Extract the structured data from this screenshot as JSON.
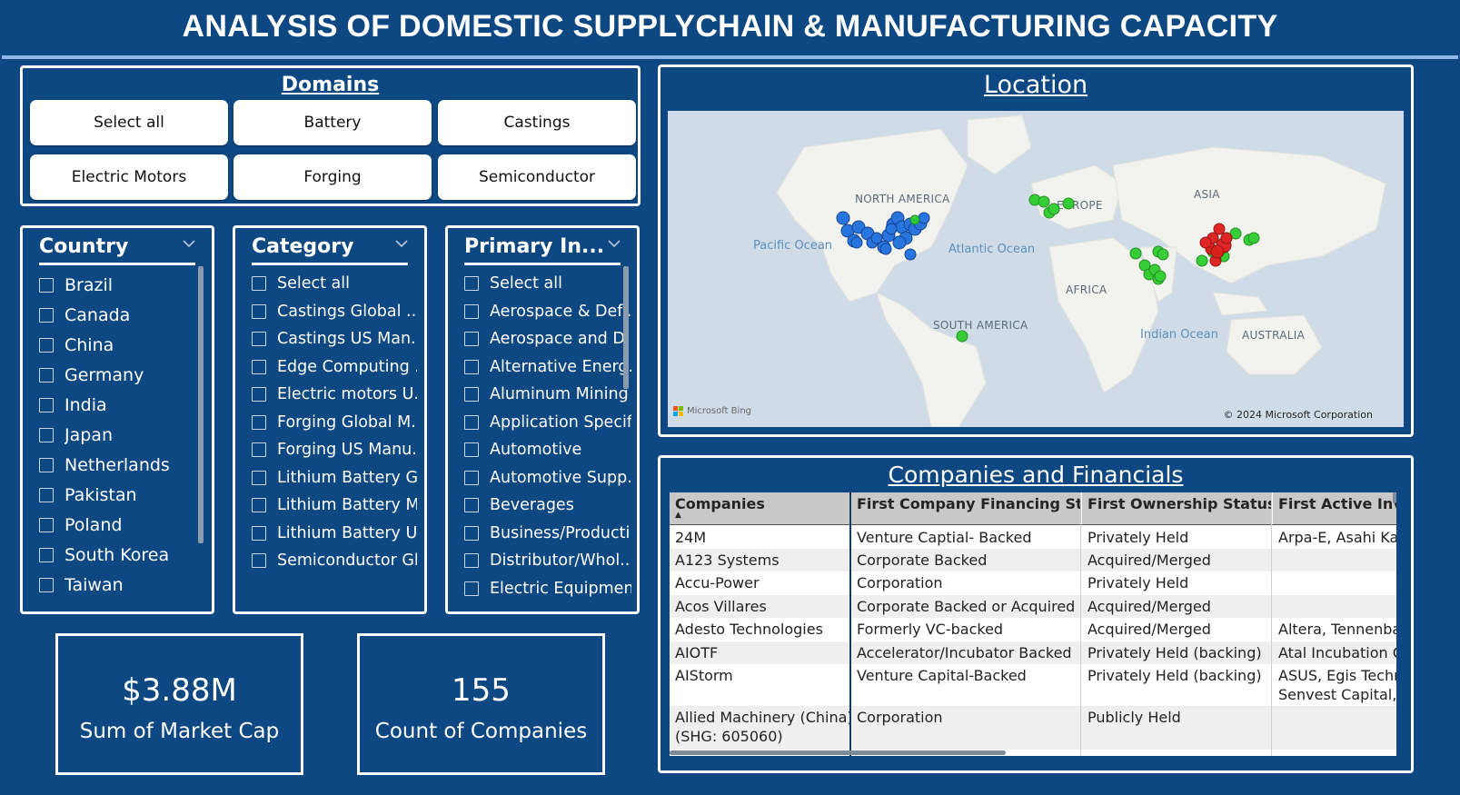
{
  "header": {
    "title": "ANALYSIS OF DOMESTIC SUPPLYCHAIN & MANUFACTURING CAPACITY"
  },
  "domains": {
    "heading": "Domains",
    "buttons": [
      "Select all",
      "Battery",
      "Castings",
      "Electric Motors",
      "Forging",
      "Semiconductor"
    ]
  },
  "country_slicer": {
    "title": "Country",
    "items": [
      "Brazil",
      "Canada",
      "China",
      "Germany",
      "India",
      "Japan",
      "Netherlands",
      "Pakistan",
      "Poland",
      "South Korea",
      "Taiwan"
    ]
  },
  "category_slicer": {
    "title": "Category",
    "items": [
      "Select all",
      "Castings Global ...",
      "Castings US Man...",
      "Edge Computing ...",
      "Electric motors U...",
      "Forging Global M...",
      "Forging US Manu...",
      "Lithium Battery Gl...",
      "Lithium Battery M...",
      "Lithium Battery U...",
      "Semiconductor Gl..."
    ]
  },
  "primary_slicer": {
    "title": "Primary In...",
    "items": [
      "Select all",
      "Aerospace & Def...",
      "Aerospace and D...",
      "Alternative Energ...",
      "Aluminum Mining",
      "Application Specif...",
      "Automotive",
      "Automotive Supp...",
      "Beverages",
      "Business/Producti...",
      "Distributor/Whol...",
      "Electric Equipment"
    ]
  },
  "kpis": [
    {
      "value": "$3.88M",
      "label": "Sum of Market Cap"
    },
    {
      "value": "155",
      "label": "Count of Companies"
    }
  ],
  "location": {
    "heading": "Location",
    "labels": {
      "north_america": "NORTH AMERICA",
      "europe": "EUROPE",
      "asia": "ASIA",
      "pacific": "Pacific Ocean",
      "atlantic": "Atlantic Ocean",
      "africa": "AFRICA",
      "south_america": "SOUTH AMERICA",
      "indian": "Indian Ocean",
      "australia": "AUSTRALIA"
    },
    "attribution": "Microsoft Bing",
    "copyright": "© 2024 Microsoft Corporation",
    "colors": {
      "us": "#1e6fe0",
      "green": "#2ecc2e",
      "red": "#e01b1b"
    }
  },
  "table": {
    "heading": "Companies and Financials",
    "columns": [
      "Companies",
      "First Company Financing Status",
      "First Ownership Status",
      "First Active Inves"
    ],
    "rows": [
      [
        "24M",
        "Venture Captial- Backed",
        "Privately Held",
        "Arpa-E, Asahi Kase"
      ],
      [
        "A123 Systems",
        "Corporate Backed",
        "Acquired/Merged",
        ""
      ],
      [
        "Accu-Power",
        "Corporation",
        "Privately Held",
        ""
      ],
      [
        "Acos Villares",
        "Corporate Backed or Acquired",
        "Acquired/Merged",
        ""
      ],
      [
        "Adesto Technologies",
        "Formerly VC-backed",
        "Acquired/Merged",
        "Altera, Tennenbau"
      ],
      [
        "AIOTF",
        "Accelerator/Incubator Backed",
        "Privately Held (backing)",
        "Atal Incubation Ce"
      ],
      [
        "AIStorm",
        "Venture Capital-Backed",
        "Privately Held (backing)",
        "ASUS, Egis Techno"
      ],
      [
        "",
        "",
        "",
        "Senvest Capital, Si"
      ],
      [
        "Allied Machinery (China)",
        "Corporation",
        "Publicly Held",
        ""
      ],
      [
        "(SHG: 605060)",
        "",
        "",
        ""
      ]
    ]
  }
}
